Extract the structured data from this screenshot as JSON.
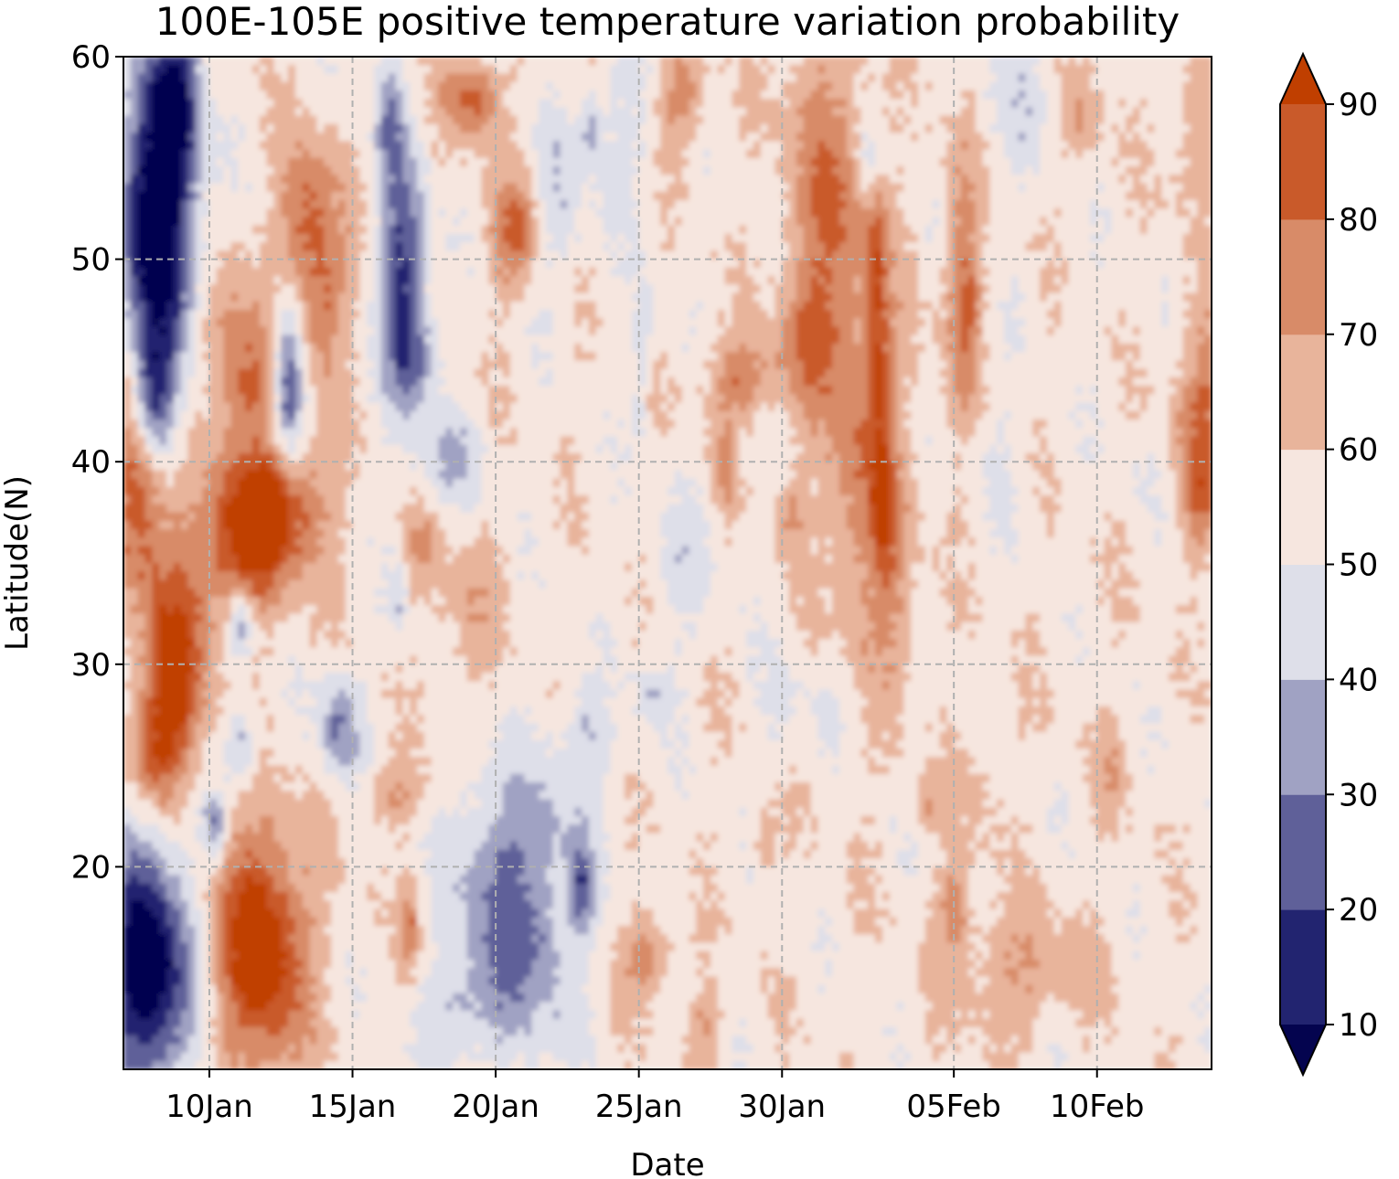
{
  "chart_data": {
    "type": "heatmap",
    "subtype": "filled-contour",
    "title": "100E-105E positive temperature variation probability",
    "xlabel": "Date",
    "ylabel": "Latitude(N)",
    "x_range": [
      "2024-01-07",
      "2024-02-14"
    ],
    "x_ticks": [
      {
        "label": "10Jan",
        "day": 3
      },
      {
        "label": "15Jan",
        "day": 8
      },
      {
        "label": "20Jan",
        "day": 13
      },
      {
        "label": "25Jan",
        "day": 18
      },
      {
        "label": "30Jan",
        "day": 23
      },
      {
        "label": "05Feb",
        "day": 29
      },
      {
        "label": "10Feb",
        "day": 34
      }
    ],
    "x_domain_days": [
      0,
      38
    ],
    "y_ticks": [
      20,
      30,
      40,
      50,
      60
    ],
    "ylim": [
      10,
      60
    ],
    "grid": true,
    "grid_style": "dashed",
    "colorbar": {
      "levels": [
        10,
        20,
        30,
        40,
        50,
        60,
        70,
        80,
        90
      ],
      "tick_labels": [
        "10",
        "20",
        "30",
        "40",
        "50",
        "60",
        "70",
        "80",
        "90"
      ],
      "extend": "both",
      "under_color": "#04044f",
      "over_color": "#c03f00",
      "band_colors": [
        "#222470",
        "#5f6099",
        "#a0a2c3",
        "#dedfe9",
        "#f6e6df",
        "#e8b49b",
        "#d88b68",
        "#c95a2a"
      ]
    },
    "dominant_features": [
      {
        "description": "very low probability band",
        "days": [
          0,
          3
        ],
        "lat": [
          40,
          60
        ],
        "value": 5
      },
      {
        "description": "very low probability band",
        "days": [
          0,
          3
        ],
        "lat": [
          10,
          22
        ],
        "value": 5
      },
      {
        "description": "high probability core",
        "days": [
          0,
          3
        ],
        "lat": [
          25,
          45
        ],
        "value": 85
      },
      {
        "description": "high probability core",
        "days": [
          3,
          7
        ],
        "lat": [
          10,
          21
        ],
        "value": 92
      },
      {
        "description": "high probability core",
        "days": [
          4,
          8
        ],
        "lat": [
          30,
          40
        ],
        "value": 85
      },
      {
        "description": "low probability area",
        "days": [
          8,
          11
        ],
        "lat": [
          44,
          56
        ],
        "value": 25
      },
      {
        "description": "low probability area",
        "days": [
          11,
          17
        ],
        "lat": [
          10,
          25
        ],
        "value": 35
      }
    ]
  }
}
